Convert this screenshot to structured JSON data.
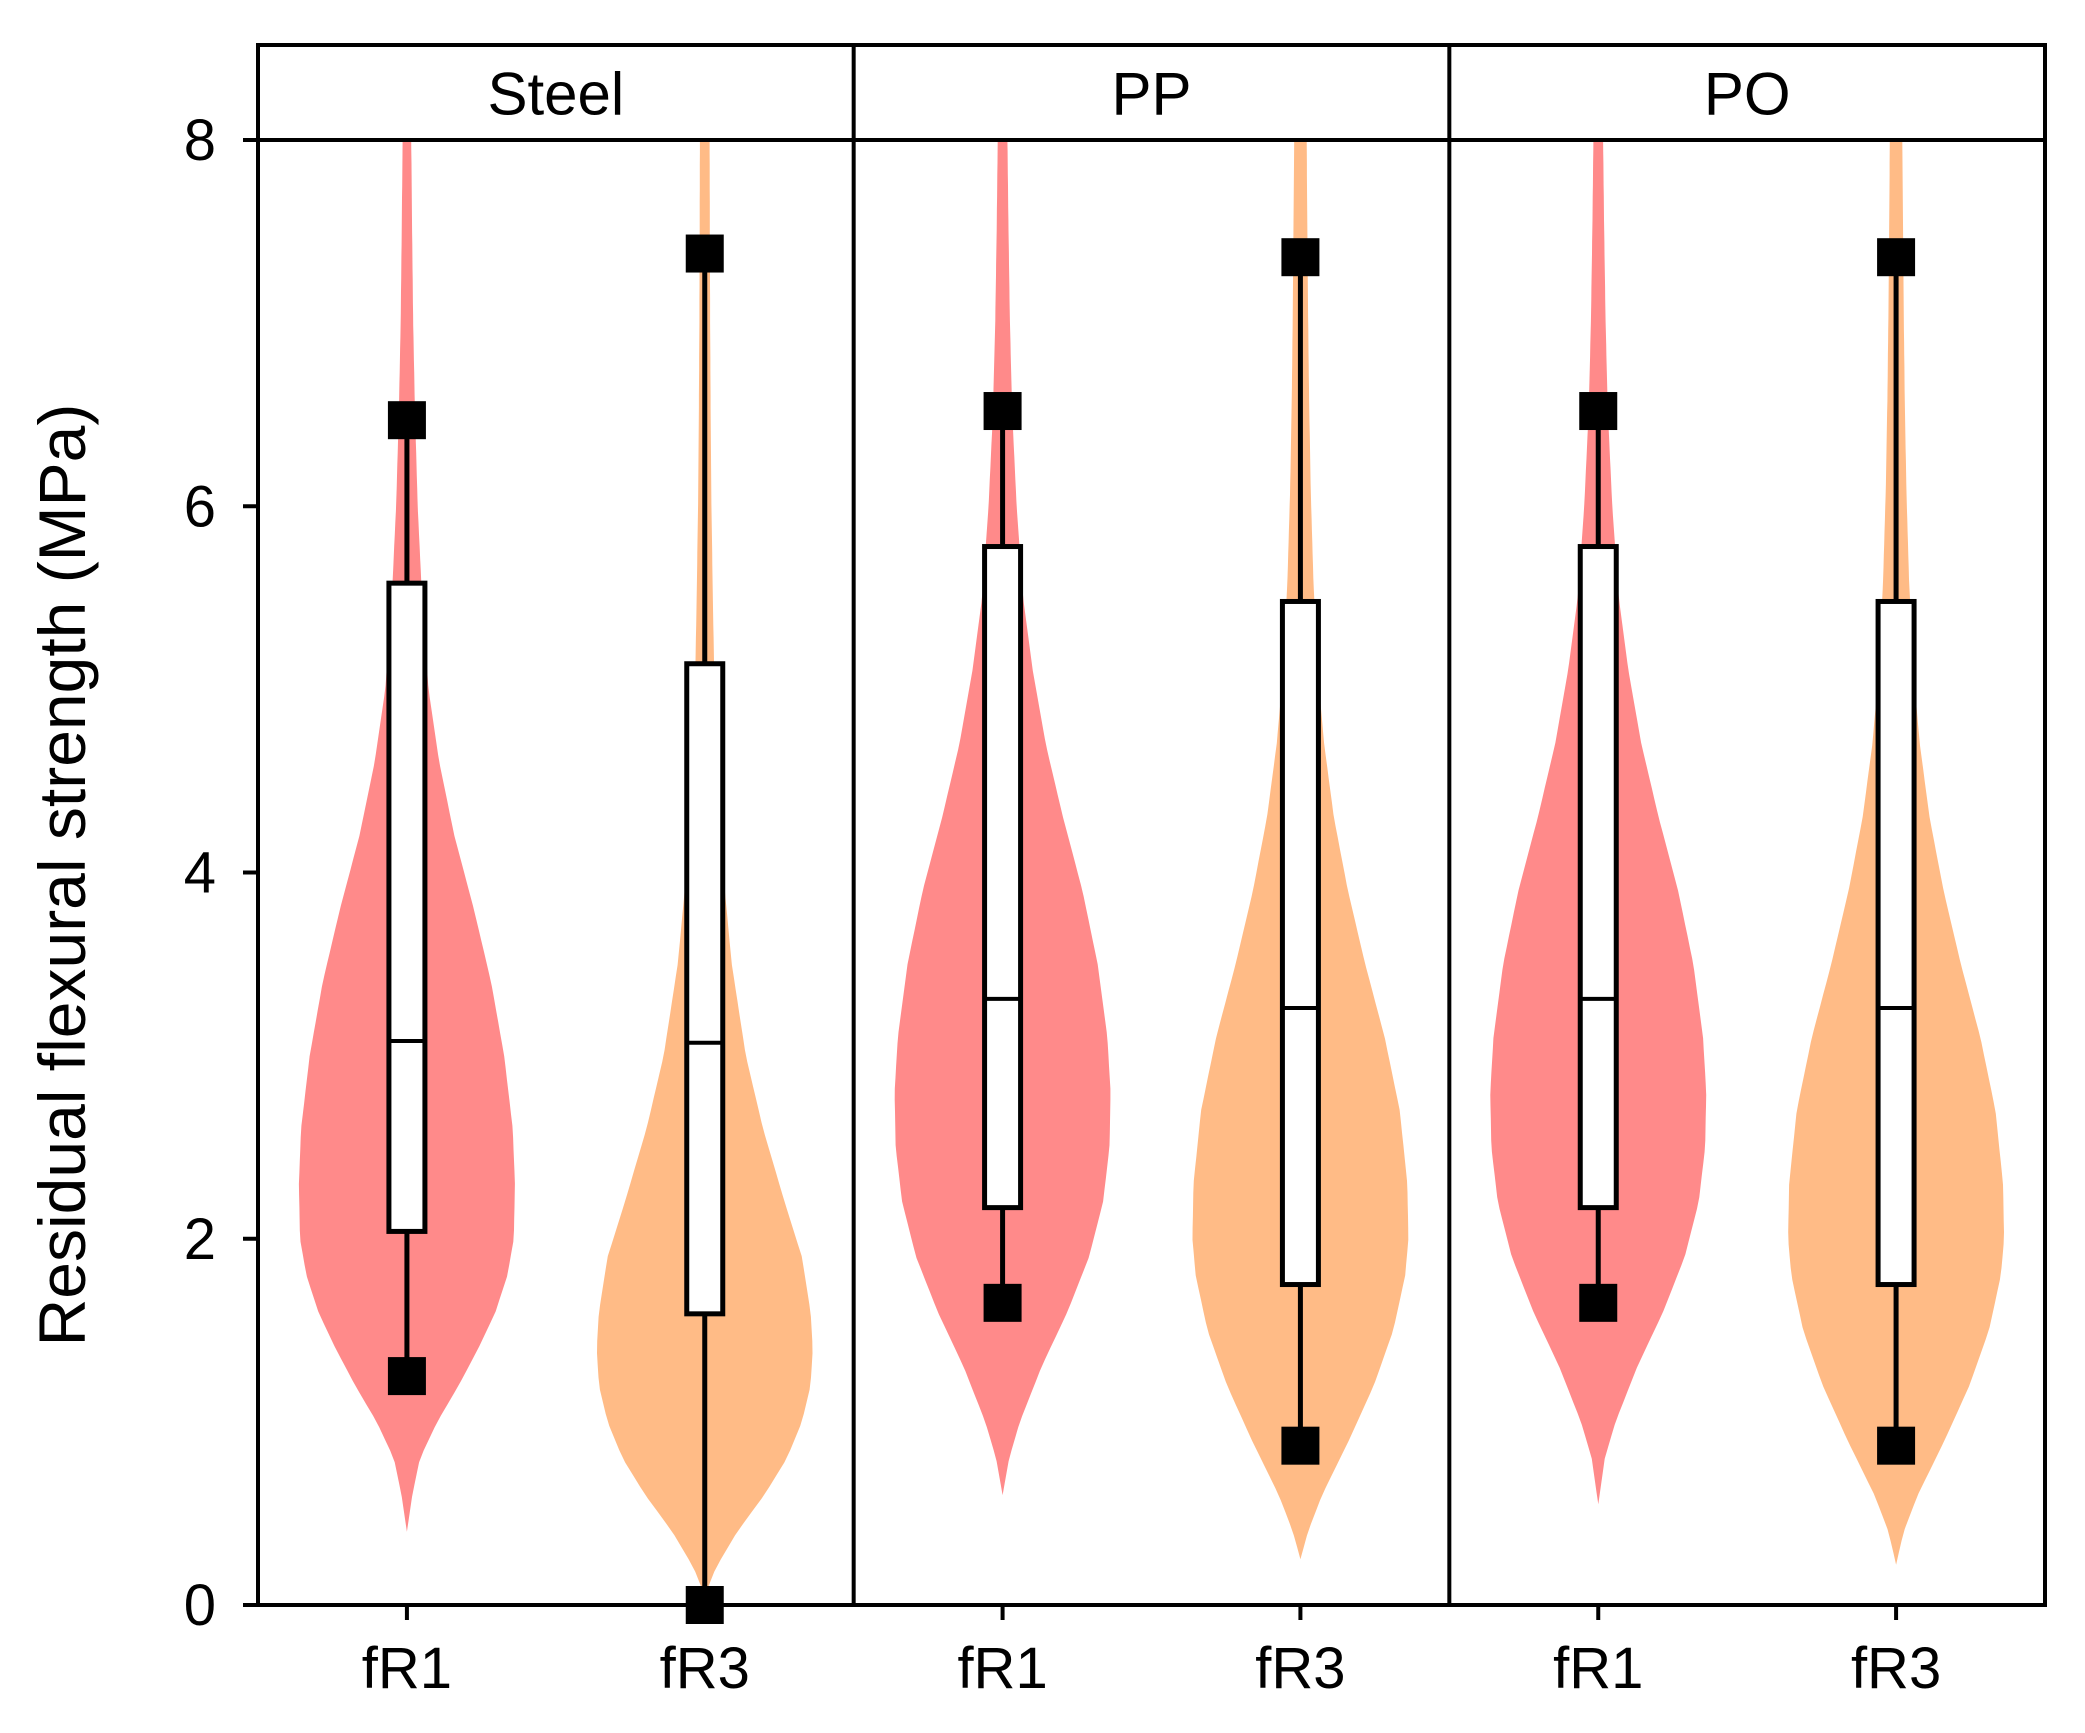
{
  "chart_data": {
    "type": "violin",
    "ylabel": "Residual flexural strength (MPa)",
    "xlabel": "",
    "ylim": [
      0,
      8
    ],
    "yticks": [
      "0",
      "2",
      "4",
      "6",
      "8"
    ],
    "grid": false,
    "panels": [
      {
        "title": "Steel",
        "groups": [
          {
            "label": "fR1",
            "color": "#ff8a8a",
            "min": 1.25,
            "q1": 2.04,
            "median": 3.08,
            "q3": 5.58,
            "max": 6.47,
            "density_range": [
              0.4,
              8.0
            ],
            "density": [
              [
                0.4,
                0.0
              ],
              [
                0.6,
                0.05
              ],
              [
                0.8,
                0.12
              ],
              [
                1.0,
                0.28
              ],
              [
                1.2,
                0.48
              ],
              [
                1.4,
                0.66
              ],
              [
                1.6,
                0.82
              ],
              [
                1.8,
                0.93
              ],
              [
                2.0,
                0.99
              ],
              [
                2.3,
                1.0
              ],
              [
                2.6,
                0.98
              ],
              [
                3.0,
                0.9
              ],
              [
                3.4,
                0.78
              ],
              [
                3.8,
                0.62
              ],
              [
                4.2,
                0.44
              ],
              [
                4.6,
                0.3
              ],
              [
                5.0,
                0.2
              ],
              [
                5.5,
                0.14
              ],
              [
                6.0,
                0.1
              ],
              [
                6.5,
                0.075
              ],
              [
                7.0,
                0.058
              ],
              [
                7.5,
                0.048
              ],
              [
                8.0,
                0.04
              ]
            ]
          },
          {
            "label": "fR3",
            "color": "#ffbb86",
            "min": 0.0,
            "q1": 1.59,
            "median": 3.07,
            "q3": 5.14,
            "max": 7.38,
            "density_range": [
              0.05,
              8.0
            ],
            "density": [
              [
                0.05,
                0.0
              ],
              [
                0.2,
                0.1
              ],
              [
                0.4,
                0.3
              ],
              [
                0.6,
                0.55
              ],
              [
                0.8,
                0.76
              ],
              [
                1.0,
                0.9
              ],
              [
                1.2,
                0.98
              ],
              [
                1.4,
                1.0
              ],
              [
                1.6,
                0.98
              ],
              [
                1.9,
                0.9
              ],
              [
                2.2,
                0.74
              ],
              [
                2.6,
                0.54
              ],
              [
                3.0,
                0.38
              ],
              [
                3.5,
                0.25
              ],
              [
                4.0,
                0.17
              ],
              [
                4.5,
                0.12
              ],
              [
                5.0,
                0.09
              ],
              [
                5.5,
                0.075
              ],
              [
                6.0,
                0.062
              ],
              [
                6.5,
                0.055
              ],
              [
                7.0,
                0.05
              ],
              [
                7.5,
                0.047
              ],
              [
                8.0,
                0.045
              ]
            ]
          }
        ]
      },
      {
        "title": "PP",
        "groups": [
          {
            "label": "fR1",
            "color": "#ff8a8a",
            "min": 1.65,
            "q1": 2.17,
            "median": 3.31,
            "q3": 5.78,
            "max": 6.52,
            "density_range": [
              0.6,
              8.0
            ],
            "density": [
              [
                0.6,
                0.0
              ],
              [
                0.8,
                0.06
              ],
              [
                1.0,
                0.16
              ],
              [
                1.3,
                0.36
              ],
              [
                1.6,
                0.6
              ],
              [
                1.9,
                0.8
              ],
              [
                2.2,
                0.93
              ],
              [
                2.5,
                0.99
              ],
              [
                2.8,
                1.0
              ],
              [
                3.1,
                0.97
              ],
              [
                3.5,
                0.88
              ],
              [
                3.9,
                0.74
              ],
              [
                4.3,
                0.56
              ],
              [
                4.7,
                0.4
              ],
              [
                5.1,
                0.28
              ],
              [
                5.5,
                0.19
              ],
              [
                6.0,
                0.13
              ],
              [
                6.5,
                0.09
              ],
              [
                7.0,
                0.068
              ],
              [
                7.5,
                0.055
              ],
              [
                8.0,
                0.045
              ]
            ]
          },
          {
            "label": "fR3",
            "color": "#ffbb86",
            "min": 0.87,
            "q1": 1.75,
            "median": 3.26,
            "q3": 5.48,
            "max": 7.36,
            "density_range": [
              0.25,
              8.0
            ],
            "density": [
              [
                0.25,
                0.0
              ],
              [
                0.4,
                0.07
              ],
              [
                0.6,
                0.2
              ],
              [
                0.9,
                0.45
              ],
              [
                1.2,
                0.68
              ],
              [
                1.5,
                0.86
              ],
              [
                1.8,
                0.97
              ],
              [
                2.0,
                1.0
              ],
              [
                2.3,
                0.99
              ],
              [
                2.7,
                0.92
              ],
              [
                3.1,
                0.78
              ],
              [
                3.5,
                0.6
              ],
              [
                3.9,
                0.44
              ],
              [
                4.3,
                0.31
              ],
              [
                4.7,
                0.22
              ],
              [
                5.1,
                0.16
              ],
              [
                5.6,
                0.12
              ],
              [
                6.1,
                0.095
              ],
              [
                6.6,
                0.08
              ],
              [
                7.1,
                0.07
              ],
              [
                7.6,
                0.063
              ],
              [
                8.0,
                0.058
              ]
            ]
          }
        ]
      },
      {
        "title": "PO",
        "groups": [
          {
            "label": "fR1",
            "color": "#ff8a8a",
            "min": 1.65,
            "q1": 2.17,
            "median": 3.31,
            "q3": 5.78,
            "max": 6.52,
            "density_range": [
              0.55,
              8.0
            ],
            "density": [
              [
                0.55,
                0.0
              ],
              [
                0.8,
                0.06
              ],
              [
                1.0,
                0.16
              ],
              [
                1.3,
                0.36
              ],
              [
                1.6,
                0.6
              ],
              [
                1.9,
                0.8
              ],
              [
                2.2,
                0.93
              ],
              [
                2.5,
                0.99
              ],
              [
                2.8,
                1.0
              ],
              [
                3.1,
                0.97
              ],
              [
                3.5,
                0.88
              ],
              [
                3.9,
                0.74
              ],
              [
                4.3,
                0.56
              ],
              [
                4.7,
                0.4
              ],
              [
                5.1,
                0.28
              ],
              [
                5.5,
                0.19
              ],
              [
                6.0,
                0.13
              ],
              [
                6.5,
                0.09
              ],
              [
                7.0,
                0.068
              ],
              [
                7.5,
                0.055
              ],
              [
                8.0,
                0.045
              ]
            ]
          },
          {
            "label": "fR3",
            "color": "#ffbb86",
            "min": 0.87,
            "q1": 1.75,
            "median": 3.26,
            "q3": 5.48,
            "max": 7.36,
            "density_range": [
              0.22,
              8.0
            ],
            "density": [
              [
                0.22,
                0.0
              ],
              [
                0.4,
                0.07
              ],
              [
                0.6,
                0.2
              ],
              [
                0.9,
                0.45
              ],
              [
                1.2,
                0.68
              ],
              [
                1.5,
                0.86
              ],
              [
                1.8,
                0.97
              ],
              [
                2.0,
                1.0
              ],
              [
                2.3,
                0.99
              ],
              [
                2.7,
                0.92
              ],
              [
                3.1,
                0.78
              ],
              [
                3.5,
                0.6
              ],
              [
                3.9,
                0.44
              ],
              [
                4.3,
                0.31
              ],
              [
                4.7,
                0.22
              ],
              [
                5.1,
                0.16
              ],
              [
                5.6,
                0.12
              ],
              [
                6.1,
                0.095
              ],
              [
                6.6,
                0.08
              ],
              [
                7.1,
                0.07
              ],
              [
                7.6,
                0.063
              ],
              [
                8.0,
                0.058
              ]
            ]
          }
        ]
      }
    ]
  }
}
